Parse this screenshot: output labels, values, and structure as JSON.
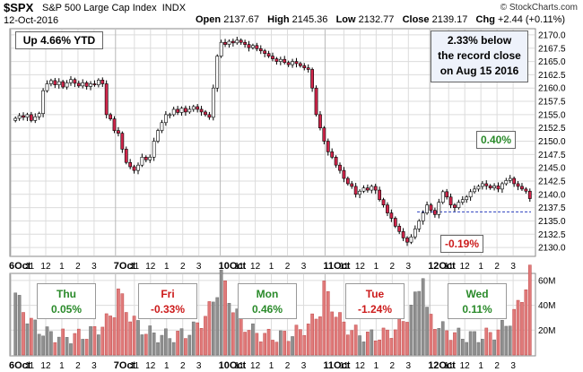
{
  "header": {
    "symbol": "$SPX",
    "name": "S&P 500 Large Cap Index",
    "exchange": "INDX",
    "date": "12-Oct-2016",
    "brand": "© StockCharts.com",
    "quote": {
      "open_label": "Open",
      "open": "2137.67",
      "high_label": "High",
      "high": "2145.36",
      "low_label": "Low",
      "low": "2132.77",
      "close_label": "Close",
      "close": "2139.17",
      "chg_label": "Chg",
      "chg": "+2.44 (+0.11%)"
    }
  },
  "annotations": {
    "ytd": "Up 4.66% YTD",
    "record_line1": "2.33% below",
    "record_line2": "the record close",
    "record_line3": "on Aug 15 2016",
    "pct_high": "0.40%",
    "pct_low": "-0.19%"
  },
  "days": [
    {
      "day": "Thu",
      "change": "0.05%",
      "color": "#2a8a2a"
    },
    {
      "day": "Fri",
      "change": "-0.33%",
      "color": "#cc1b1b"
    },
    {
      "day": "Mon",
      "change": "0.46%",
      "color": "#2a8a2a"
    },
    {
      "day": "Tue",
      "change": "-1.24%",
      "color": "#cc1b1b"
    },
    {
      "day": "Wed",
      "change": "0.11%",
      "color": "#2a8a2a"
    }
  ],
  "colors": {
    "up": "#ffffff",
    "down": "#d0254a",
    "outline": "#000000",
    "volume_up": "#8f8f8f",
    "volume_down": "#e07a7a",
    "grid": "#dcdcdc",
    "reference_line": "#2a3fbf"
  },
  "chart_data": [
    {
      "type": "candlestick",
      "title": "$SPX S&P 500 Large Cap Index INDX",
      "interval": "5-minute",
      "ylim": [
        2128.5,
        2171
      ],
      "y_ticks": [
        2130.0,
        2132.5,
        2135.0,
        2137.5,
        2140.0,
        2142.5,
        2145.0,
        2147.5,
        2150.0,
        2152.5,
        2155.0,
        2157.5,
        2160.0,
        2162.5,
        2165.0,
        2167.5,
        2170.0
      ],
      "x_labels": [
        "6Oct",
        "11",
        "12",
        "1",
        "2",
        "3",
        "7Oct",
        "11",
        "12",
        "1",
        "2",
        "3",
        "10Oct",
        "11",
        "12",
        "1",
        "2",
        "3",
        "11Oct",
        "11",
        "12",
        "1",
        "2",
        "3",
        "12Oct",
        "11",
        "12",
        "1",
        "2",
        "3"
      ],
      "reference_level": 2136.7,
      "grid": true,
      "closes": [
        2154.3,
        2154.8,
        2154.5,
        2155.0,
        2153.9,
        2154.6,
        2155.2,
        2159.5,
        2160.8,
        2161.4,
        2160.6,
        2161.2,
        2160.2,
        2161.0,
        2161.6,
        2160.9,
        2160.4,
        2161.0,
        2160.3,
        2160.8,
        2160.6,
        2161.5,
        2160.8,
        2155.0,
        2154.2,
        2152.0,
        2151.5,
        2148.5,
        2146.0,
        2145.2,
        2144.5,
        2145.5,
        2147.0,
        2146.5,
        2147.0,
        2150.0,
        2152.0,
        2153.5,
        2155.0,
        2155.0,
        2156.0,
        2155.4,
        2156.2,
        2155.5,
        2156.0,
        2156.5,
        2156.0,
        2155.5,
        2155.0,
        2154.5,
        2160.0,
        2166.0,
        2168.6,
        2168.2,
        2168.8,
        2168.5,
        2169.0,
        2168.6,
        2168.2,
        2167.6,
        2168.0,
        2167.4,
        2167.0,
        2166.5,
        2166.0,
        2165.5,
        2165.0,
        2165.4,
        2164.8,
        2164.4,
        2165.0,
        2164.6,
        2164.2,
        2163.8,
        2163.5,
        2160.0,
        2155.0,
        2152.5,
        2150.0,
        2148.0,
        2147.0,
        2145.5,
        2144.5,
        2143.0,
        2142.0,
        2141.5,
        2140.0,
        2140.6,
        2141.2,
        2140.8,
        2141.5,
        2140.8,
        2139.0,
        2138.0,
        2136.5,
        2135.5,
        2134.0,
        2133.0,
        2131.8,
        2131.0,
        2132.0,
        2133.5,
        2135.0,
        2136.5,
        2138.0,
        2137.0,
        2136.2,
        2138.5,
        2140.5,
        2139.5,
        2138.0,
        2137.5,
        2138.5,
        2139.0,
        2139.5,
        2140.5,
        2141.0,
        2141.5,
        2142.0,
        2141.6,
        2141.2,
        2141.6,
        2141.0,
        2142.0,
        2142.6,
        2143.0,
        2142.0,
        2141.5,
        2141.0,
        2140.6,
        2139.2
      ]
    },
    {
      "type": "bar",
      "title": "Volume",
      "ylim": [
        0,
        65
      ],
      "y_ticks": [
        20,
        40,
        60
      ],
      "y_tick_labels": [
        "20M",
        "40M",
        "60M"
      ],
      "x_labels": [
        "6Oct",
        "11",
        "12",
        "1",
        "2",
        "3",
        "7Oct",
        "11",
        "12",
        "1",
        "2",
        "3",
        "10Oct",
        "11",
        "12",
        "1",
        "2",
        "3",
        "11Oct",
        "11",
        "12",
        "1",
        "2",
        "3",
        "12Oct",
        "11",
        "12",
        "1",
        "2",
        "3"
      ],
      "day_open_volumes": [
        44,
        46,
        60,
        50,
        28
      ],
      "day_close_volumes": [
        30,
        46,
        30,
        60,
        50
      ],
      "typical_volume_range": [
        8,
        20
      ]
    }
  ]
}
